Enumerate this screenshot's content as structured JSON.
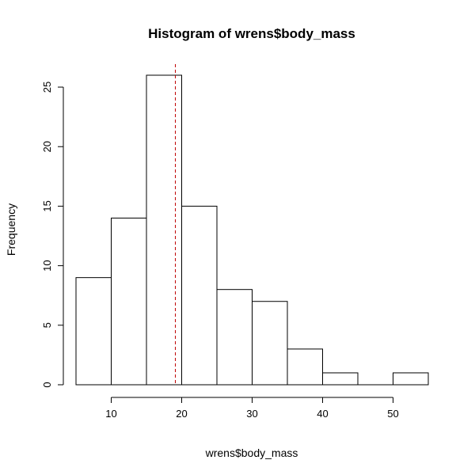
{
  "chart_data": {
    "type": "bar",
    "title": "Histogram of wrens$body_mass",
    "xlabel": "wrens$body_mass",
    "ylabel": "Frequency",
    "bins": [
      {
        "from": 5,
        "to": 10,
        "count": 9
      },
      {
        "from": 10,
        "to": 15,
        "count": 14
      },
      {
        "from": 15,
        "to": 20,
        "count": 26
      },
      {
        "from": 20,
        "to": 25,
        "count": 15
      },
      {
        "from": 25,
        "to": 30,
        "count": 8
      },
      {
        "from": 30,
        "to": 35,
        "count": 7
      },
      {
        "from": 35,
        "to": 40,
        "count": 3
      },
      {
        "from": 40,
        "to": 45,
        "count": 1
      },
      {
        "from": 45,
        "to": 50,
        "count": 0
      },
      {
        "from": 50,
        "to": 55,
        "count": 1
      }
    ],
    "xlim": [
      5,
      55
    ],
    "ylim": [
      0,
      26
    ],
    "x_ticks": [
      10,
      20,
      30,
      40,
      50
    ],
    "y_ticks": [
      0,
      5,
      10,
      15,
      20,
      25
    ],
    "reference_line": {
      "x": 19.1,
      "color": "#c00000",
      "style": "dashed"
    },
    "grid": false,
    "legend": "none"
  }
}
